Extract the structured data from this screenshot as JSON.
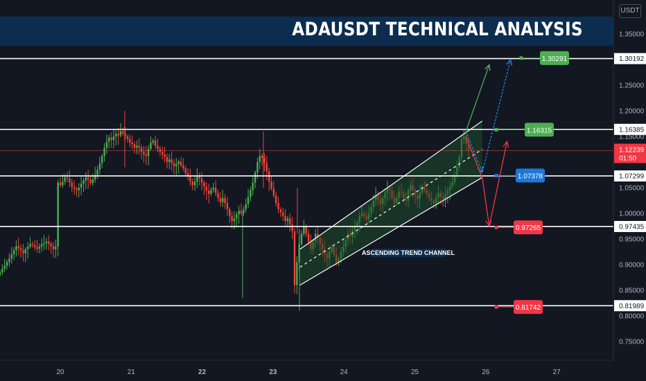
{
  "header": {
    "title": "ADAUSDT TECHNICAL ANALYSIS",
    "currency": "USDT"
  },
  "colors": {
    "background": "#131722",
    "banner": "#0c2d4f",
    "up": "#26a69a",
    "down": "#ef5350",
    "candle_up": "#4caf50",
    "candle_down": "#f44336",
    "green_label": "#4caf50",
    "blue_label": "#1e78d6",
    "red_label": "#f23645",
    "channel_fill": "#1b4d2a"
  },
  "chart_data": {
    "type": "candlestick",
    "symbol": "ADAUSDT",
    "x_ticks": [
      "20",
      "21",
      "22",
      "23",
      "24",
      "25",
      "26",
      "27"
    ],
    "x_range": [
      19.15,
      27.8
    ],
    "y_range": [
      0.7,
      1.37
    ],
    "y_ticks": [
      "1.35000",
      "1.25000",
      "1.20000",
      "1.15000",
      "1.05000",
      "1.00000",
      "0.95000",
      "0.90000",
      "0.85000",
      "0.80000",
      "0.75000"
    ],
    "current_price": {
      "value": "1.12239",
      "countdown": "01:50"
    },
    "horizontal_levels": [
      {
        "value": 1.30192,
        "label": "1.30192"
      },
      {
        "value": 1.16385,
        "label": "1.16385"
      },
      {
        "value": 1.07299,
        "label": "1.07299"
      },
      {
        "value": 0.97435,
        "label": "0.97435"
      },
      {
        "value": 0.81989,
        "label": "0.81989"
      }
    ],
    "targets": [
      {
        "value": 1.30291,
        "label": "1.30291",
        "color": "green",
        "x": 26.5
      },
      {
        "value": 1.16315,
        "label": "1.16315",
        "color": "green",
        "x": 26.15
      },
      {
        "value": 1.07378,
        "label": "1.07378",
        "color": "blue",
        "x": 26.15
      },
      {
        "value": 0.97265,
        "label": "0.97265",
        "color": "red",
        "x": 26.15
      },
      {
        "value": 0.81742,
        "label": "0.81742",
        "color": "red",
        "x": 26.15
      }
    ],
    "channel": {
      "label": "ASCENDING TREND CHANNEL",
      "upper": [
        [
          23.38,
          0.93
        ],
        [
          25.95,
          1.18
        ]
      ],
      "lower": [
        [
          23.38,
          0.86
        ],
        [
          25.95,
          1.07
        ]
      ],
      "mid": [
        [
          23.38,
          0.895
        ],
        [
          25.95,
          1.125
        ]
      ]
    },
    "projections": [
      {
        "color": "green",
        "points": [
          [
            25.72,
            1.16
          ],
          [
            26.05,
            1.29
          ]
        ]
      },
      {
        "color": "blue",
        "points": [
          [
            25.72,
            1.16
          ],
          [
            25.95,
            1.08
          ],
          [
            26.35,
            1.3
          ]
        ]
      },
      {
        "color": "red",
        "points": [
          [
            25.72,
            1.15
          ],
          [
            25.95,
            1.07
          ],
          [
            26.05,
            0.975
          ],
          [
            26.3,
            1.14
          ]
        ]
      }
    ],
    "candles_closes": [
      0.885,
      0.892,
      0.898,
      0.905,
      0.912,
      0.92,
      0.928,
      0.936,
      0.932,
      0.928,
      0.922,
      0.93,
      0.935,
      0.94,
      0.938,
      0.934,
      0.931,
      0.935,
      0.94,
      0.942,
      0.945,
      0.941,
      0.936,
      0.93,
      0.935,
      1.06,
      1.055,
      1.062,
      1.07,
      1.068,
      1.06,
      1.052,
      1.048,
      1.045,
      1.05,
      1.058,
      1.064,
      1.07,
      1.066,
      1.059,
      1.066,
      1.075,
      1.085,
      1.098,
      1.112,
      1.128,
      1.14,
      1.148,
      1.143,
      1.15,
      1.155,
      1.152,
      1.16,
      1.156,
      1.15,
      1.145,
      1.138,
      1.135,
      1.128,
      1.132,
      1.128,
      1.12,
      1.115,
      1.112,
      1.126,
      1.138,
      1.142,
      1.132,
      1.126,
      1.12,
      1.115,
      1.11,
      1.1,
      1.105,
      1.098,
      1.092,
      1.096,
      1.101,
      1.094,
      1.088,
      1.078,
      1.072,
      1.062,
      1.055,
      1.062,
      1.072,
      1.068,
      1.06,
      1.052,
      1.044,
      1.038,
      1.046,
      1.05,
      1.04,
      1.03,
      1.022,
      1.03,
      1.02,
      1.008,
      0.995,
      0.985,
      0.99,
      0.998,
      1.005,
      1.0,
      1.008,
      1.018,
      1.032,
      1.045,
      1.06,
      1.08,
      1.1,
      1.112,
      1.108,
      1.098,
      1.082,
      1.062,
      1.048,
      1.035,
      1.02,
      1.008,
      1.002,
      0.995,
      0.985,
      0.99,
      0.978,
      0.965,
      0.86,
      0.905,
      0.94,
      0.96,
      0.975,
      0.96,
      0.945,
      0.93,
      0.945,
      0.96,
      0.952,
      0.94,
      0.93,
      0.92,
      0.912,
      0.925,
      0.935,
      0.92,
      0.905,
      0.912,
      0.925,
      0.935,
      0.948,
      0.96,
      0.955,
      0.968,
      0.975,
      0.982,
      0.995,
      1.0,
      0.995,
      0.988,
      1.0,
      1.012,
      1.025,
      1.035,
      1.028,
      1.018,
      1.03,
      1.04,
      1.05,
      1.045,
      1.03,
      1.02,
      1.03,
      1.042,
      1.04,
      1.03,
      1.025,
      1.045,
      1.055,
      1.045,
      1.035,
      1.028,
      1.04,
      1.052,
      1.045,
      1.038,
      1.03,
      1.025,
      1.02,
      1.03,
      1.04,
      1.032,
      1.028,
      1.038,
      1.045,
      1.052,
      1.06,
      1.075,
      1.09,
      1.11,
      1.145,
      1.15,
      1.135,
      1.122
    ]
  }
}
